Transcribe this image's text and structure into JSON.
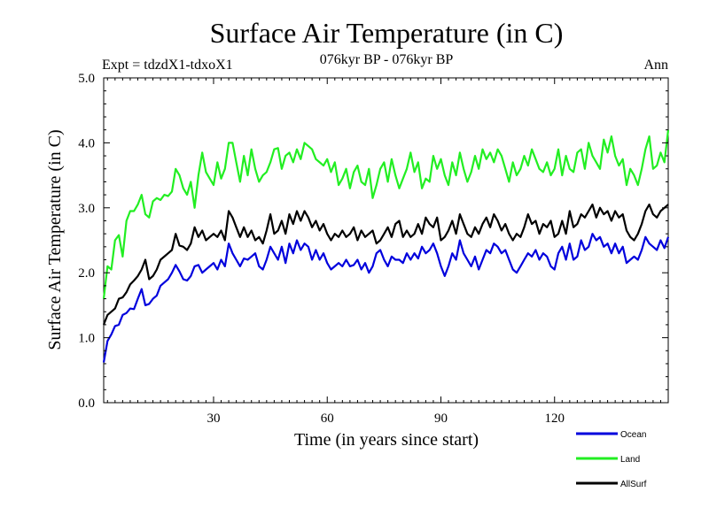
{
  "chart_data": {
    "type": "line",
    "title": "Surface Air Temperature (in C)",
    "subtitle": "076kyr BP - 076kyr BP",
    "experiment": "Expt = tdzdX1-tdxoX1",
    "season": "Ann",
    "xlabel": "Time (in years since start)",
    "ylabel": "Surface Air Temperature (in C)",
    "xlim": [
      1,
      150
    ],
    "ylim": [
      0,
      5
    ],
    "x_ticks": [
      30,
      60,
      90,
      120
    ],
    "x_tick_labels": [
      "30",
      "60",
      "90",
      "120"
    ],
    "y_ticks": [
      0,
      1,
      2,
      3,
      4,
      5
    ],
    "y_tick_labels": [
      "0.0",
      "1.0",
      "2.0",
      "3.0",
      "4.0",
      "5.0"
    ],
    "legend_position": "bottom-right, below plot",
    "x": [
      1,
      2,
      3,
      4,
      5,
      6,
      7,
      8,
      9,
      10,
      11,
      12,
      13,
      14,
      15,
      16,
      17,
      18,
      19,
      20,
      21,
      22,
      23,
      24,
      25,
      26,
      27,
      28,
      29,
      30,
      31,
      32,
      33,
      34,
      35,
      36,
      37,
      38,
      39,
      40,
      41,
      42,
      43,
      44,
      45,
      46,
      47,
      48,
      49,
      50,
      51,
      52,
      53,
      54,
      55,
      56,
      57,
      58,
      59,
      60,
      61,
      62,
      63,
      64,
      65,
      66,
      67,
      68,
      69,
      70,
      71,
      72,
      73,
      74,
      75,
      76,
      77,
      78,
      79,
      80,
      81,
      82,
      83,
      84,
      85,
      86,
      87,
      88,
      89,
      90,
      91,
      92,
      93,
      94,
      95,
      96,
      97,
      98,
      99,
      100,
      101,
      102,
      103,
      104,
      105,
      106,
      107,
      108,
      109,
      110,
      111,
      112,
      113,
      114,
      115,
      116,
      117,
      118,
      119,
      120,
      121,
      122,
      123,
      124,
      125,
      126,
      127,
      128,
      129,
      130,
      131,
      132,
      133,
      134,
      135,
      136,
      137,
      138,
      139,
      140,
      141,
      142,
      143,
      144,
      145,
      146,
      147,
      148,
      149,
      150
    ],
    "series": [
      {
        "name": "Ocean",
        "color": "#0000dd",
        "values": [
          0.62,
          0.95,
          1.05,
          1.18,
          1.2,
          1.35,
          1.38,
          1.45,
          1.44,
          1.6,
          1.75,
          1.5,
          1.52,
          1.6,
          1.65,
          1.8,
          1.85,
          1.9,
          2.0,
          2.12,
          2.02,
          1.9,
          1.88,
          1.95,
          2.1,
          2.12,
          2.0,
          2.05,
          2.1,
          2.15,
          2.05,
          2.2,
          2.1,
          2.45,
          2.3,
          2.2,
          2.1,
          2.22,
          2.2,
          2.25,
          2.3,
          2.1,
          2.05,
          2.2,
          2.4,
          2.3,
          2.2,
          2.4,
          2.15,
          2.45,
          2.3,
          2.5,
          2.35,
          2.45,
          2.4,
          2.2,
          2.35,
          2.2,
          2.3,
          2.15,
          2.05,
          2.1,
          2.15,
          2.1,
          2.2,
          2.1,
          2.12,
          2.2,
          2.05,
          2.15,
          2.0,
          2.1,
          2.3,
          2.35,
          2.2,
          2.1,
          2.25,
          2.2,
          2.2,
          2.15,
          2.3,
          2.2,
          2.3,
          2.22,
          2.4,
          2.3,
          2.35,
          2.45,
          2.3,
          2.1,
          1.95,
          2.1,
          2.3,
          2.2,
          2.5,
          2.3,
          2.2,
          2.1,
          2.25,
          2.05,
          2.2,
          2.35,
          2.3,
          2.45,
          2.4,
          2.3,
          2.35,
          2.2,
          2.05,
          2.0,
          2.1,
          2.2,
          2.3,
          2.25,
          2.35,
          2.2,
          2.3,
          2.25,
          2.1,
          2.05,
          2.3,
          2.4,
          2.2,
          2.45,
          2.2,
          2.25,
          2.5,
          2.35,
          2.4,
          2.6,
          2.5,
          2.55,
          2.4,
          2.45,
          2.3,
          2.45,
          2.3,
          2.4,
          2.15,
          2.2,
          2.25,
          2.2,
          2.35,
          2.55,
          2.45,
          2.4,
          2.35,
          2.5,
          2.38,
          2.55
        ]
      },
      {
        "name": "Land",
        "color": "#22ee22",
        "values": [
          1.6,
          2.1,
          2.05,
          2.5,
          2.58,
          2.25,
          2.8,
          2.95,
          2.95,
          3.05,
          3.2,
          2.9,
          2.85,
          3.1,
          3.15,
          3.12,
          3.2,
          3.18,
          3.25,
          3.6,
          3.5,
          3.3,
          3.2,
          3.4,
          3.0,
          3.5,
          3.85,
          3.55,
          3.45,
          3.35,
          3.7,
          3.45,
          3.6,
          4.0,
          4.0,
          3.7,
          3.4,
          3.8,
          3.5,
          3.9,
          3.6,
          3.4,
          3.5,
          3.55,
          3.7,
          3.9,
          3.92,
          3.6,
          3.8,
          3.85,
          3.7,
          3.9,
          3.75,
          4.0,
          3.95,
          3.9,
          3.75,
          3.7,
          3.65,
          3.75,
          3.55,
          3.7,
          3.35,
          3.45,
          3.6,
          3.3,
          3.55,
          3.65,
          3.4,
          3.35,
          3.6,
          3.15,
          3.35,
          3.6,
          3.7,
          3.4,
          3.75,
          3.5,
          3.3,
          3.45,
          3.6,
          3.85,
          3.55,
          3.7,
          3.3,
          3.45,
          3.4,
          3.8,
          3.6,
          3.75,
          3.5,
          3.35,
          3.7,
          3.5,
          3.85,
          3.6,
          3.4,
          3.55,
          3.8,
          3.6,
          3.9,
          3.75,
          3.85,
          3.7,
          3.9,
          3.8,
          3.6,
          3.4,
          3.7,
          3.5,
          3.6,
          3.8,
          3.65,
          3.9,
          3.75,
          3.6,
          3.55,
          3.7,
          3.5,
          3.6,
          3.9,
          3.5,
          3.8,
          3.6,
          3.55,
          3.85,
          3.9,
          3.6,
          4.0,
          3.8,
          3.7,
          3.6,
          4.05,
          3.85,
          4.1,
          3.8,
          3.65,
          3.75,
          3.35,
          3.6,
          3.5,
          3.35,
          3.6,
          3.9,
          4.1,
          3.6,
          3.65,
          3.85,
          3.7,
          4.2
        ]
      },
      {
        "name": "AllSurf",
        "color": "#000000",
        "values": [
          1.2,
          1.35,
          1.4,
          1.45,
          1.6,
          1.62,
          1.7,
          1.82,
          1.88,
          1.95,
          2.05,
          2.2,
          1.9,
          1.95,
          2.05,
          2.2,
          2.25,
          2.3,
          2.35,
          2.6,
          2.42,
          2.4,
          2.35,
          2.45,
          2.7,
          2.55,
          2.65,
          2.5,
          2.55,
          2.6,
          2.55,
          2.65,
          2.5,
          2.95,
          2.85,
          2.7,
          2.55,
          2.7,
          2.55,
          2.65,
          2.5,
          2.55,
          2.45,
          2.65,
          2.9,
          2.6,
          2.65,
          2.8,
          2.6,
          2.9,
          2.75,
          2.95,
          2.8,
          2.95,
          2.85,
          2.7,
          2.8,
          2.65,
          2.75,
          2.6,
          2.5,
          2.6,
          2.55,
          2.65,
          2.55,
          2.6,
          2.7,
          2.5,
          2.65,
          2.55,
          2.6,
          2.65,
          2.45,
          2.5,
          2.6,
          2.7,
          2.55,
          2.75,
          2.8,
          2.55,
          2.65,
          2.55,
          2.6,
          2.75,
          2.6,
          2.85,
          2.75,
          2.7,
          2.85,
          2.5,
          2.55,
          2.65,
          2.8,
          2.6,
          2.9,
          2.75,
          2.6,
          2.55,
          2.7,
          2.6,
          2.75,
          2.85,
          2.7,
          2.9,
          2.8,
          2.65,
          2.75,
          2.6,
          2.5,
          2.6,
          2.55,
          2.7,
          2.9,
          2.75,
          2.8,
          2.6,
          2.75,
          2.7,
          2.8,
          2.55,
          2.6,
          2.8,
          2.6,
          2.95,
          2.7,
          2.75,
          2.9,
          2.85,
          2.95,
          3.05,
          2.85,
          3.0,
          2.9,
          2.95,
          2.8,
          2.95,
          2.85,
          2.9,
          2.65,
          2.55,
          2.5,
          2.6,
          2.75,
          2.95,
          3.05,
          2.9,
          2.85,
          2.95,
          3.0,
          3.05
        ]
      }
    ]
  }
}
